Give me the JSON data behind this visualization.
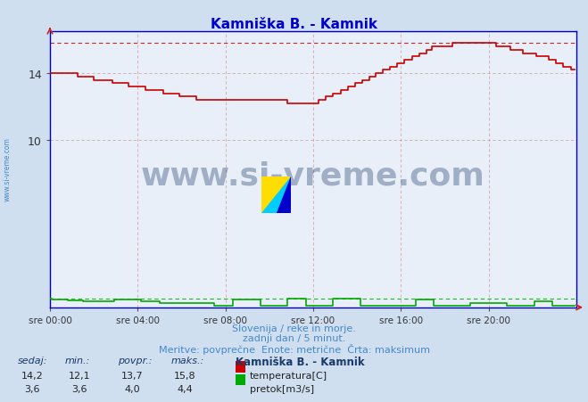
{
  "title": "Kamniška B. - Kamnik",
  "title_color": "#0000cc",
  "bg_color": "#d0dff0",
  "plot_bg_color": "#e8eff8",
  "x_labels": [
    "sre 00:00",
    "sre 04:00",
    "sre 08:00",
    "sre 12:00",
    "sre 16:00",
    "sre 20:00"
  ],
  "x_ticks": [
    0,
    48,
    96,
    144,
    192,
    240
  ],
  "x_max": 288,
  "ylim": [
    0,
    16.5
  ],
  "y_ticks": [
    10,
    14
  ],
  "temp_color": "#cc0000",
  "flow_color": "#00aa00",
  "dashed_line_temp": 15.8,
  "dashed_line_flow": 0.5,
  "subtitle1": "Slovenija / reke in morje.",
  "subtitle2": "zadnji dan / 5 minut.",
  "subtitle3": "Meritve: povprečne  Enote: metrične  Črta: maksimum",
  "subtitle_color": "#4488cc",
  "table_headers": [
    "sedaj:",
    "min.:",
    "povpr.:",
    "maks.:"
  ],
  "table_label": "Kamniška B. - Kamnik",
  "temp_row": [
    "14,2",
    "12,1",
    "13,7",
    "15,8"
  ],
  "flow_row": [
    "3,6",
    "3,6",
    "4,0",
    "4,4"
  ],
  "temp_label": "temperatura[C]",
  "flow_label": "pretok[m3/s]",
  "watermark": "www.si-vreme.com",
  "watermark_color": "#1a3a6a",
  "left_label": "www.si-vreme.com",
  "left_label_color": "#4488cc",
  "flow_scale": 0.12,
  "flow_base": 0.0
}
